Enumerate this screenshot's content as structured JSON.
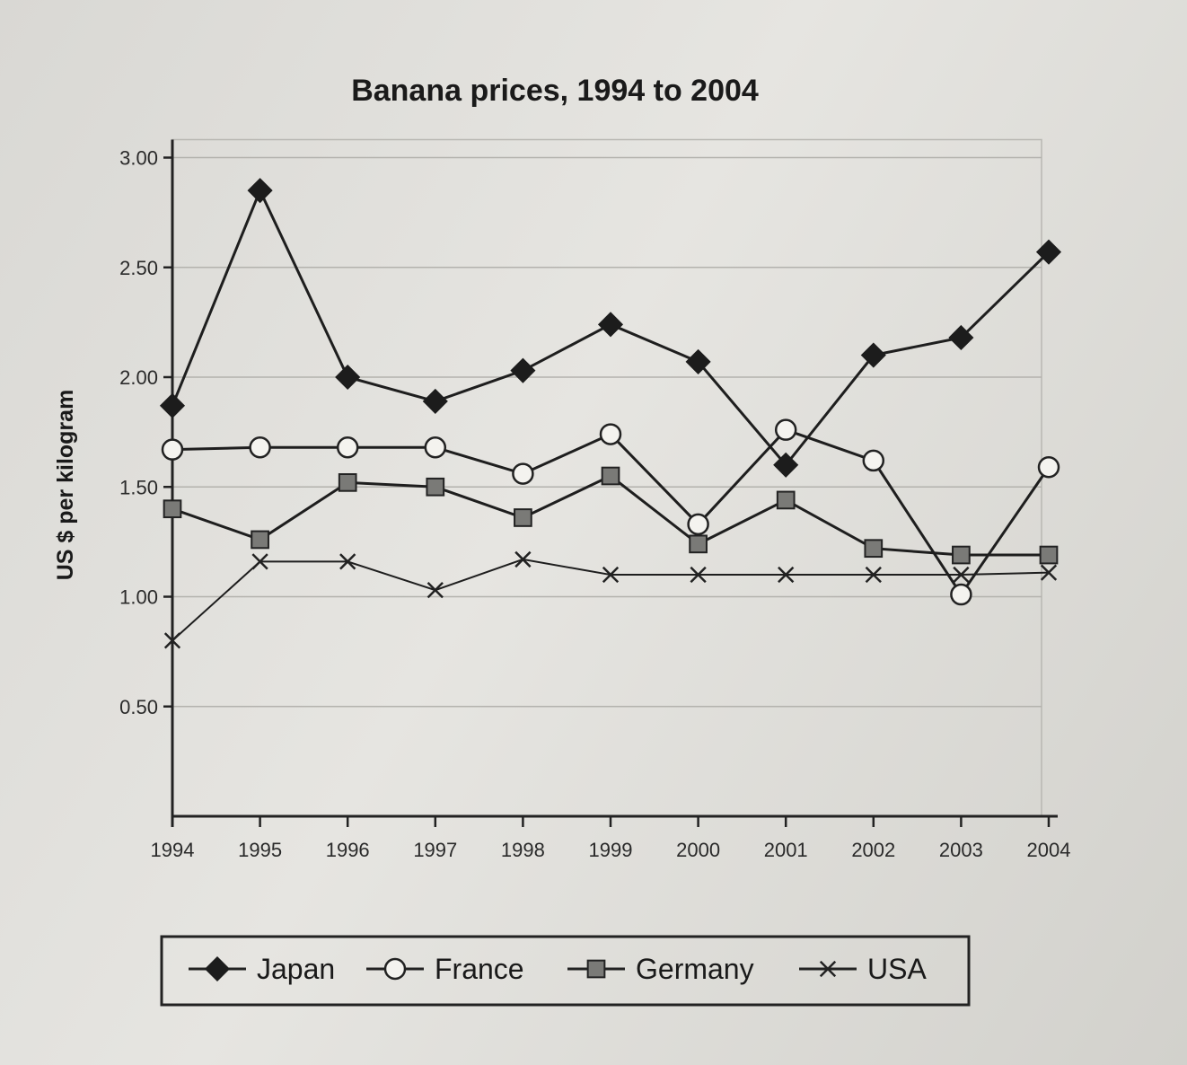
{
  "chart_data": {
    "type": "line",
    "title": "Banana prices, 1994 to 2004",
    "xlabel": "",
    "ylabel": "US $ per kilogram",
    "x": [
      "1994",
      "1995",
      "1996",
      "1997",
      "1998",
      "1999",
      "2000",
      "2001",
      "2002",
      "2003",
      "2004"
    ],
    "ylim": [
      0,
      3
    ],
    "yticks": [
      "3.00",
      "2.50",
      "2.00",
      "1.50",
      "1.00",
      "0.50"
    ],
    "grid": true,
    "legend": "bottom",
    "series": [
      {
        "name": "Japan",
        "marker": "diamond",
        "color": "#1a1a1a",
        "values": [
          1.87,
          2.85,
          2.0,
          1.89,
          2.03,
          2.24,
          2.07,
          1.6,
          2.1,
          2.18,
          2.57
        ]
      },
      {
        "name": "France",
        "marker": "circle",
        "color": "#1a1a1a",
        "values": [
          1.67,
          1.68,
          1.68,
          1.68,
          1.56,
          1.74,
          1.33,
          1.76,
          1.62,
          1.01,
          1.59
        ]
      },
      {
        "name": "Germany",
        "marker": "square",
        "color": "#1a1a1a",
        "values": [
          1.4,
          1.26,
          1.52,
          1.5,
          1.36,
          1.55,
          1.24,
          1.44,
          1.22,
          1.19,
          1.19
        ]
      },
      {
        "name": "USA",
        "marker": "x",
        "color": "#1a1a1a",
        "values": [
          0.8,
          1.16,
          1.16,
          1.03,
          1.17,
          1.1,
          1.1,
          1.1,
          1.1,
          1.1,
          1.11
        ]
      }
    ]
  }
}
